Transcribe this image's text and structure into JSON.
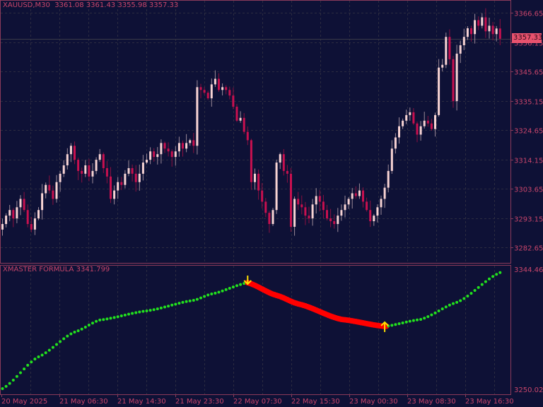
{
  "header": {
    "symbol": "XAUUSD,M30",
    "ohlc": "3361.08 3361.43 3355.98 3357.33"
  },
  "indicator_header": {
    "name": "XMASTER FORMULA",
    "value": "3341.799"
  },
  "colors": {
    "background": "#0e1136",
    "bull": "#f7d3d3",
    "bear": "#c8104f",
    "axis": "#c8456a",
    "trend_up": "#22e01e",
    "trend_down": "#ff0000",
    "signal_arrow": "#ffe000",
    "price_label_bg": "#e8526e"
  },
  "chart_data": [
    {
      "type": "candlestick",
      "title": "XAUUSD,M30",
      "current_price": "3357.33",
      "y_ticks": [
        "3366.65",
        "3356.15",
        "3345.65",
        "3335.15",
        "3324.65",
        "3314.15",
        "3303.65",
        "3293.15",
        "3282.65"
      ],
      "x_ticks": [
        "20 May 2025",
        "21 May 06:30",
        "21 May 14:30",
        "21 May 23:30",
        "22 May 07:30",
        "22 May 15:30",
        "23 May 00:30",
        "23 May 08:30",
        "23 May 16:30"
      ],
      "grid": true,
      "closes": [
        3291,
        3294,
        3296,
        3293,
        3297,
        3300,
        3296,
        3291,
        3289,
        3293,
        3296,
        3302,
        3305,
        3303,
        3300,
        3306,
        3309,
        3312,
        3316,
        3319,
        3314,
        3310,
        3309,
        3312,
        3308,
        3310,
        3314,
        3316,
        3311,
        3308,
        3300,
        3303,
        3306,
        3305,
        3309,
        3311,
        3309,
        3306,
        3309,
        3313,
        3314,
        3317,
        3315,
        3316,
        3320,
        3318,
        3317,
        3315,
        3317,
        3320,
        3318,
        3320,
        3321,
        3319,
        3340,
        3339,
        3338,
        3336,
        3341,
        3343,
        3339,
        3340,
        3339,
        3337,
        3333,
        3328,
        3329,
        3324,
        3321,
        3306,
        3309,
        3303,
        3299,
        3295,
        3291,
        3296,
        3313,
        3316,
        3310,
        3309,
        3290,
        3300,
        3298,
        3297,
        3294,
        3293,
        3298,
        3301,
        3299,
        3296,
        3293,
        3292,
        3291,
        3294,
        3296,
        3298,
        3300,
        3302,
        3301,
        3303,
        3299,
        3296,
        3292,
        3294,
        3297,
        3300,
        3304,
        3310,
        3318,
        3322,
        3326,
        3328,
        3330,
        3331,
        3327,
        3323,
        3326,
        3328,
        3327,
        3325,
        3330,
        3347,
        3348,
        3358,
        3350,
        3335,
        3352,
        3355,
        3358,
        3361.08,
        3359,
        3364,
        3362,
        3365,
        3360,
        3362,
        3359,
        3361,
        3357.33
      ]
    },
    {
      "type": "line",
      "title": "XMASTER FORMULA 3341.799",
      "y_ticks": [
        "3344.463",
        "3250.023"
      ],
      "points": [
        [
          0,
          3250.6
        ],
        [
          10,
          3275.6
        ],
        [
          20,
          3295.0
        ],
        [
          27,
          3304.5
        ],
        [
          40,
          3311.7
        ],
        [
          53,
          3320.0
        ],
        [
          58,
          3325.0
        ],
        [
          68,
          3333.9
        ],
        [
          76,
          3323.9
        ],
        [
          82,
          3317.2
        ],
        [
          94,
          3305.0
        ],
        [
          106,
          3299.5
        ],
        [
          116,
          3305.0
        ],
        [
          126,
          3318.4
        ],
        [
          138,
          3341.8
        ]
      ],
      "down_segment": [
        68,
        106
      ],
      "signals": [
        {
          "bar": 68,
          "direction": "down"
        },
        {
          "bar": 106,
          "direction": "up"
        }
      ]
    }
  ]
}
